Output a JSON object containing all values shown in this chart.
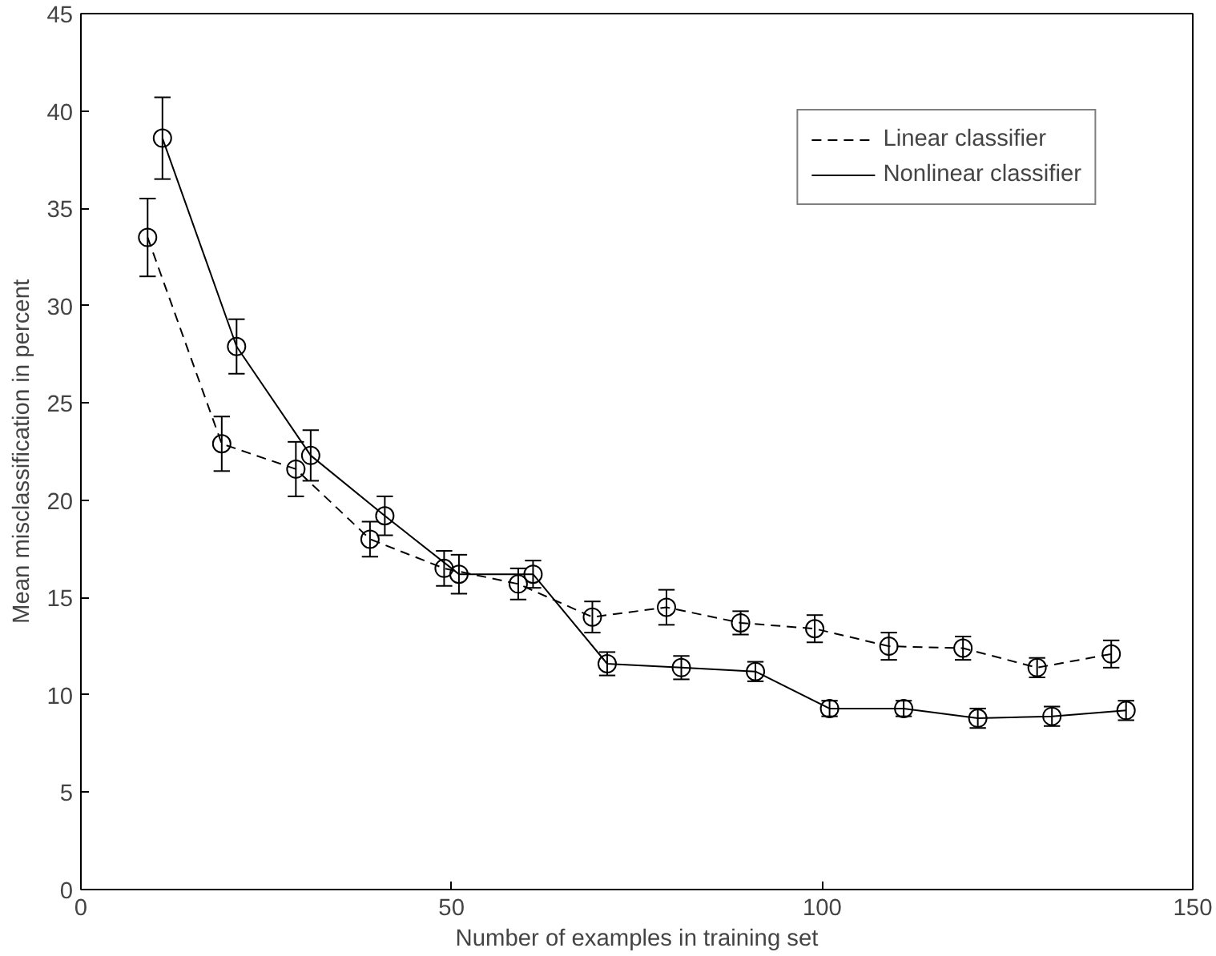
{
  "chart_data": {
    "type": "line",
    "xlabel": "Number of examples in training set",
    "ylabel": "Mean misclassification in percent",
    "xlim": [
      0,
      150
    ],
    "ylim": [
      0,
      45
    ],
    "xticks": [
      0,
      50,
      100,
      150
    ],
    "yticks": [
      0,
      5,
      10,
      15,
      20,
      25,
      30,
      35,
      40,
      45
    ],
    "grid": false,
    "legend": "top right",
    "marker": "circle",
    "series": [
      {
        "name": "Linear classifier",
        "color": "#000000",
        "line_style": "dashed",
        "x": [
          9,
          19,
          29,
          39,
          49,
          59,
          69,
          79,
          89,
          99,
          109,
          119,
          129,
          139
        ],
        "values": [
          33.5,
          22.9,
          21.6,
          18,
          16.5,
          15.7,
          14,
          14.5,
          13.7,
          13.4,
          12.5,
          12.4,
          11.4,
          12.1
        ],
        "errors": [
          2,
          1.4,
          1.4,
          0.9,
          0.9,
          0.8,
          0.8,
          0.9,
          0.6,
          0.7,
          0.7,
          0.6,
          0.5,
          0.7
        ]
      },
      {
        "name": "Nonlinear classifier",
        "color": "#000000",
        "line_style": "solid",
        "x": [
          11,
          21,
          31,
          41,
          51,
          61,
          71,
          81,
          91,
          101,
          111,
          121,
          131,
          141
        ],
        "values": [
          38.6,
          27.9,
          22.3,
          19.2,
          16.2,
          16.2,
          11.6,
          11.4,
          11.2,
          9.3,
          9.3,
          8.8,
          8.9,
          9.2
        ],
        "errors": [
          2.1,
          1.4,
          1.3,
          1,
          1,
          0.7,
          0.6,
          0.6,
          0.5,
          0.4,
          0.4,
          0.5,
          0.5,
          0.5
        ]
      }
    ]
  }
}
